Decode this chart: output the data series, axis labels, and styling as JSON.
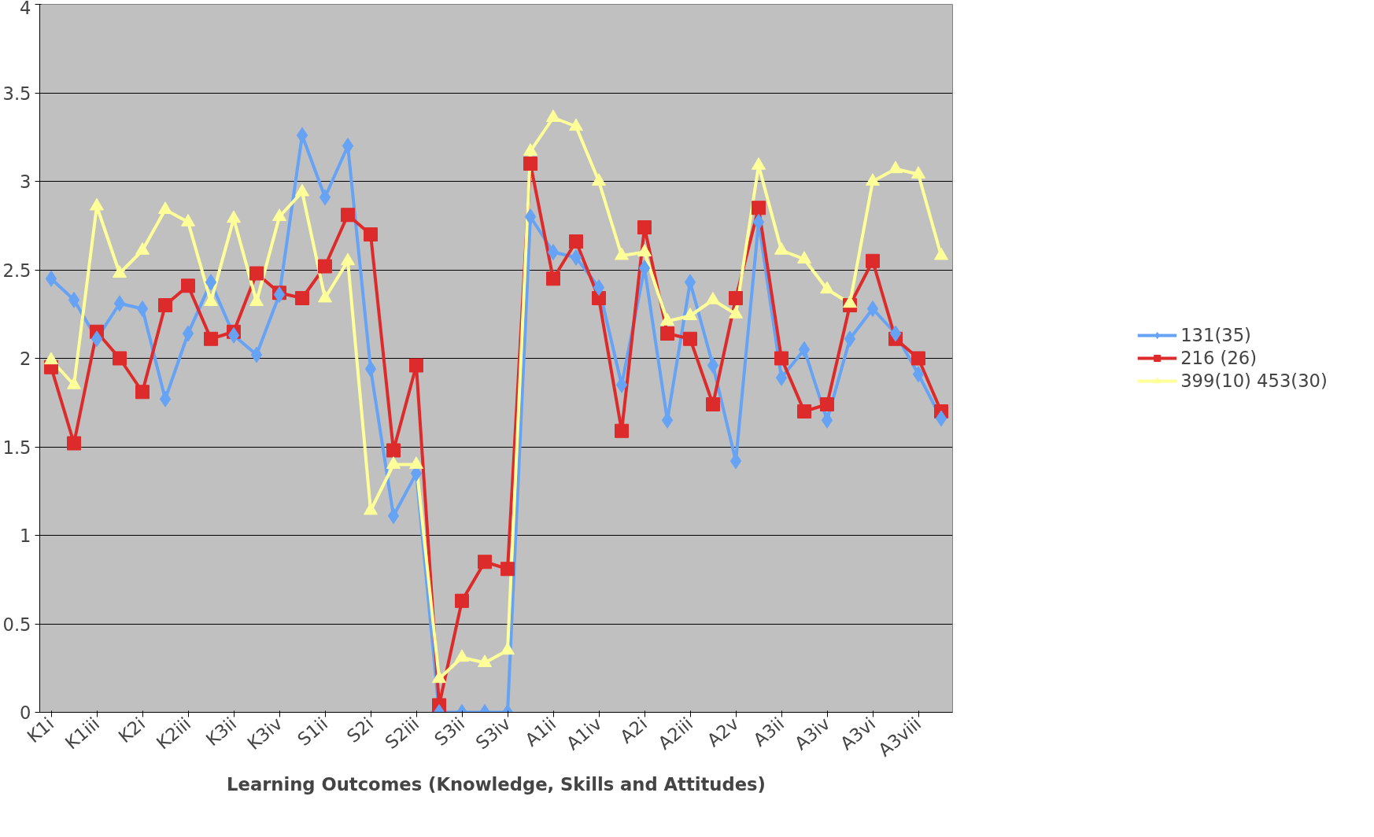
{
  "chart_data": {
    "type": "line",
    "xlabel": "Learning Outcomes (Knowledge, Skills and Attitudes)",
    "categories": [
      "K1i",
      null,
      "K1iii",
      null,
      "K2i",
      null,
      "K2iii",
      null,
      "K3ii",
      null,
      "K3iv",
      null,
      "S1ii",
      null,
      "S2i",
      null,
      "S2iii",
      null,
      "S3ii",
      null,
      "S3iv",
      null,
      "A1ii",
      null,
      "A1iv",
      null,
      "A2i",
      null,
      "A2iii",
      null,
      "A2v",
      null,
      "A3ii",
      null,
      "A3iv",
      null,
      "A3vi",
      null,
      "A3viii",
      null
    ],
    "series": [
      {
        "name": "131(35)",
        "color": "#66a3f5",
        "marker": "diamond",
        "values": [
          2.45,
          2.33,
          2.11,
          2.31,
          2.28,
          1.77,
          2.14,
          2.43,
          2.13,
          2.02,
          2.36,
          3.26,
          2.91,
          3.2,
          1.94,
          1.11,
          1.35,
          0,
          0,
          0,
          0,
          2.8,
          2.6,
          2.57,
          2.4,
          1.85,
          2.51,
          1.65,
          2.43,
          1.96,
          1.42,
          2.77,
          1.89,
          2.05,
          1.65,
          2.11,
          2.28,
          2.14,
          1.91,
          1.66
        ]
      },
      {
        "name": "216 (26)",
        "color": "#dd2a2a",
        "marker": "square",
        "values": [
          1.95,
          1.52,
          2.15,
          2.0,
          1.81,
          2.3,
          2.41,
          2.11,
          2.15,
          2.48,
          2.37,
          2.34,
          2.52,
          2.81,
          2.7,
          1.48,
          1.96,
          0.04,
          0.63,
          0.85,
          0.81,
          3.1,
          2.45,
          2.66,
          2.34,
          1.59,
          2.74,
          2.14,
          2.11,
          1.74,
          2.34,
          2.85,
          2.0,
          1.7,
          1.74,
          2.3,
          2.55,
          2.11,
          2.0,
          1.7
        ]
      },
      {
        "name": "399(10) 453(30)",
        "color": "#ffff99",
        "marker": "triangle",
        "values": [
          1.99,
          1.85,
          2.86,
          2.48,
          2.61,
          2.84,
          2.77,
          2.32,
          2.79,
          2.32,
          2.8,
          2.94,
          2.34,
          2.55,
          1.14,
          1.4,
          1.4,
          0.19,
          0.31,
          0.28,
          0.35,
          3.17,
          3.36,
          3.31,
          3.0,
          2.58,
          2.6,
          2.21,
          2.24,
          2.33,
          2.25,
          3.09,
          2.61,
          2.56,
          2.39,
          2.31,
          3.0,
          3.07,
          3.04,
          2.58
        ]
      }
    ],
    "ylim": [
      0,
      4
    ],
    "yticks": [
      0,
      0.5,
      1,
      1.5,
      2,
      2.5,
      3,
      3.5,
      4
    ],
    "grid": "y",
    "legend": "right"
  }
}
